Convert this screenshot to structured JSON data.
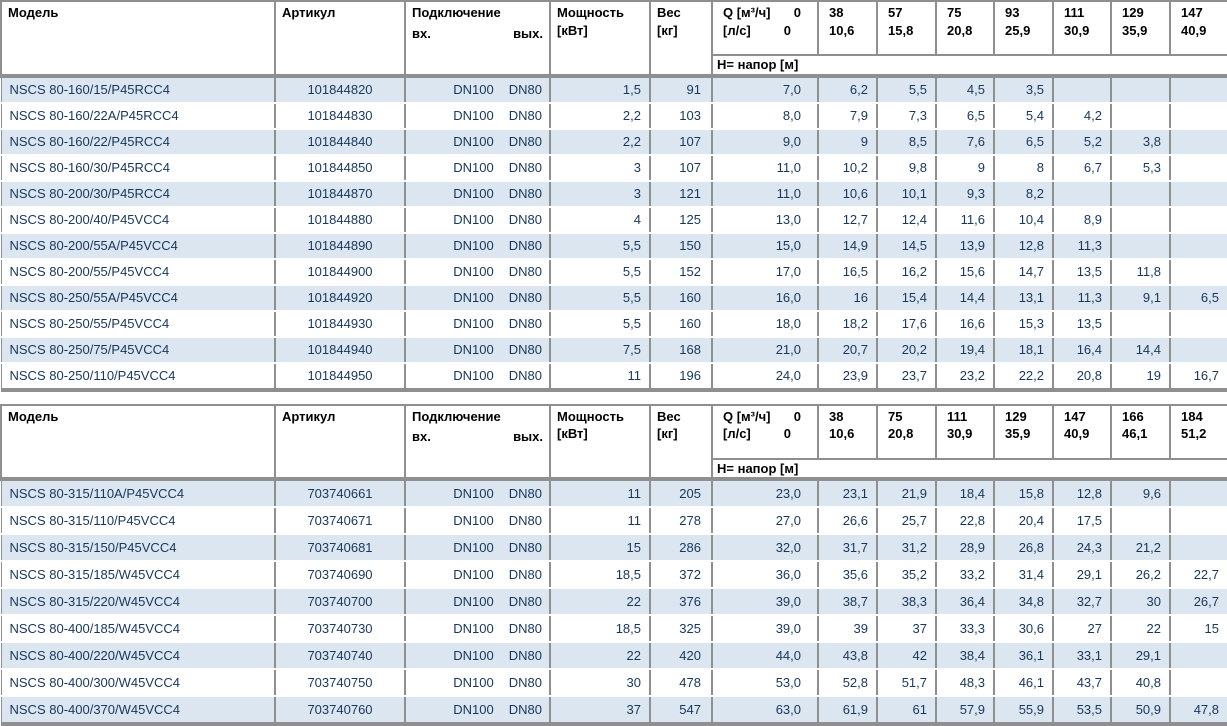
{
  "colors": {
    "row_alt": "#dce6f1",
    "border": "#8f8f8f",
    "body_text": "#17375d",
    "header_text": "#000000"
  },
  "tables": [
    {
      "headers": {
        "model": "Модель",
        "article": "Артикул",
        "connection": "Подключение",
        "conn_in": "вх.",
        "conn_out": "вых.",
        "power_line1": "Мощность",
        "power_line2": "[кВт]",
        "weight_line1": "Вес",
        "weight_line2": "[кг]",
        "q_row1_label": "Q [м³/ч]",
        "q_row1_value": "0",
        "q_row2_label": "[л/с]",
        "q_row2_value": "0",
        "head_label": "Н= напор [м]",
        "q_columns": [
          {
            "m3h": "38",
            "ls": "10,6"
          },
          {
            "m3h": "57",
            "ls": "15,8"
          },
          {
            "m3h": "75",
            "ls": "20,8"
          },
          {
            "m3h": "93",
            "ls": "25,9"
          },
          {
            "m3h": "111",
            "ls": "30,9"
          },
          {
            "m3h": "129",
            "ls": "35,9"
          },
          {
            "m3h": "147",
            "ls": "40,9"
          }
        ]
      },
      "rows": [
        {
          "model": "NSCS 80-160/15/P45RCC4",
          "article": "101844820",
          "dn_in": "DN100",
          "dn_out": "DN80",
          "power": "1,5",
          "weight": "91",
          "heads": [
            "7,0",
            "6,2",
            "5,5",
            "4,5",
            "3,5",
            "",
            "",
            ""
          ]
        },
        {
          "model": "NSCS 80-160/22A/P45RCC4",
          "article": "101844830",
          "dn_in": "DN100",
          "dn_out": "DN80",
          "power": "2,2",
          "weight": "103",
          "heads": [
            "8,0",
            "7,9",
            "7,3",
            "6,5",
            "5,4",
            "4,2",
            "",
            ""
          ]
        },
        {
          "model": "NSCS 80-160/22/P45RCC4",
          "article": "101844840",
          "dn_in": "DN100",
          "dn_out": "DN80",
          "power": "2,2",
          "weight": "107",
          "heads": [
            "9,0",
            "9",
            "8,5",
            "7,6",
            "6,5",
            "5,2",
            "3,8",
            ""
          ]
        },
        {
          "model": "NSCS 80-160/30/P45RCC4",
          "article": "101844850",
          "dn_in": "DN100",
          "dn_out": "DN80",
          "power": "3",
          "weight": "107",
          "heads": [
            "11,0",
            "10,2",
            "9,8",
            "9",
            "8",
            "6,7",
            "5,3",
            ""
          ]
        },
        {
          "model": "NSCS 80-200/30/P45RCC4",
          "article": "101844870",
          "dn_in": "DN100",
          "dn_out": "DN80",
          "power": "3",
          "weight": "121",
          "heads": [
            "11,0",
            "10,6",
            "10,1",
            "9,3",
            "8,2",
            "",
            "",
            ""
          ]
        },
        {
          "model": "NSCS 80-200/40/P45VCC4",
          "article": "101844880",
          "dn_in": "DN100",
          "dn_out": "DN80",
          "power": "4",
          "weight": "125",
          "heads": [
            "13,0",
            "12,7",
            "12,4",
            "11,6",
            "10,4",
            "8,9",
            "",
            ""
          ]
        },
        {
          "model": "NSCS 80-200/55A/P45VCC4",
          "article": "101844890",
          "dn_in": "DN100",
          "dn_out": "DN80",
          "power": "5,5",
          "weight": "150",
          "heads": [
            "15,0",
            "14,9",
            "14,5",
            "13,9",
            "12,8",
            "11,3",
            "",
            ""
          ]
        },
        {
          "model": "NSCS 80-200/55/P45VCC4",
          "article": "101844900",
          "dn_in": "DN100",
          "dn_out": "DN80",
          "power": "5,5",
          "weight": "152",
          "heads": [
            "17,0",
            "16,5",
            "16,2",
            "15,6",
            "14,7",
            "13,5",
            "11,8",
            ""
          ]
        },
        {
          "model": "NSCS 80-250/55A/P45VCC4",
          "article": "101844920",
          "dn_in": "DN100",
          "dn_out": "DN80",
          "power": "5,5",
          "weight": "160",
          "heads": [
            "16,0",
            "16",
            "15,4",
            "14,4",
            "13,1",
            "11,3",
            "9,1",
            "6,5"
          ]
        },
        {
          "model": "NSCS 80-250/55/P45VCC4",
          "article": "101844930",
          "dn_in": "DN100",
          "dn_out": "DN80",
          "power": "5,5",
          "weight": "160",
          "heads": [
            "18,0",
            "18,2",
            "17,6",
            "16,6",
            "15,3",
            "13,5",
            "",
            ""
          ]
        },
        {
          "model": "NSCS 80-250/75/P45VCC4",
          "article": "101844940",
          "dn_in": "DN100",
          "dn_out": "DN80",
          "power": "7,5",
          "weight": "168",
          "heads": [
            "21,0",
            "20,7",
            "20,2",
            "19,4",
            "18,1",
            "16,4",
            "14,4",
            ""
          ]
        },
        {
          "model": "NSCS 80-250/110/P45VCC4",
          "article": "101844950",
          "dn_in": "DN100",
          "dn_out": "DN80",
          "power": "11",
          "weight": "196",
          "heads": [
            "24,0",
            "23,9",
            "23,7",
            "23,2",
            "22,2",
            "20,8",
            "19",
            "16,7"
          ]
        }
      ]
    },
    {
      "headers": {
        "model": "Модель",
        "article": "Артикул",
        "connection": "Подключение",
        "conn_in": "вх.",
        "conn_out": "вых.",
        "power_line1": "Мощность",
        "power_line2": "[кВт]",
        "weight_line1": "Вес",
        "weight_line2": "[кг]",
        "q_row1_label": "Q [м³/ч]",
        "q_row1_value": "0",
        "q_row2_label": "[л/с]",
        "q_row2_value": "0",
        "head_label": "Н= напор [м]",
        "q_columns": [
          {
            "m3h": "38",
            "ls": "10,6"
          },
          {
            "m3h": "75",
            "ls": "20,8"
          },
          {
            "m3h": "111",
            "ls": "30,9"
          },
          {
            "m3h": "129",
            "ls": "35,9"
          },
          {
            "m3h": "147",
            "ls": "40,9"
          },
          {
            "m3h": "166",
            "ls": "46,1"
          },
          {
            "m3h": "184",
            "ls": "51,2"
          }
        ]
      },
      "rows": [
        {
          "model": "NSCS 80-315/110A/P45VCC4",
          "article": "703740661",
          "dn_in": "DN100",
          "dn_out": "DN80",
          "power": "11",
          "weight": "205",
          "heads": [
            "23,0",
            "23,1",
            "21,9",
            "18,4",
            "15,8",
            "12,8",
            "9,6",
            ""
          ]
        },
        {
          "model": "NSCS 80-315/110/P45VCC4",
          "article": "703740671",
          "dn_in": "DN100",
          "dn_out": "DN80",
          "power": "11",
          "weight": "278",
          "heads": [
            "27,0",
            "26,6",
            "25,7",
            "22,8",
            "20,4",
            "17,5",
            "",
            ""
          ]
        },
        {
          "model": "NSCS 80-315/150/P45VCC4",
          "article": "703740681",
          "dn_in": "DN100",
          "dn_out": "DN80",
          "power": "15",
          "weight": "286",
          "heads": [
            "32,0",
            "31,7",
            "31,2",
            "28,9",
            "26,8",
            "24,3",
            "21,2",
            ""
          ]
        },
        {
          "model": "NSCS 80-315/185/W45VCC4",
          "article": "703740690",
          "dn_in": "DN100",
          "dn_out": "DN80",
          "power": "18,5",
          "weight": "372",
          "heads": [
            "36,0",
            "35,6",
            "35,2",
            "33,2",
            "31,4",
            "29,1",
            "26,2",
            "22,7"
          ]
        },
        {
          "model": "NSCS 80-315/220/W45VCC4",
          "article": "703740700",
          "dn_in": "DN100",
          "dn_out": "DN80",
          "power": "22",
          "weight": "376",
          "heads": [
            "39,0",
            "38,7",
            "38,3",
            "36,4",
            "34,8",
            "32,7",
            "30",
            "26,7"
          ]
        },
        {
          "model": "NSCS 80-400/185/W45VCC4",
          "article": "703740730",
          "dn_in": "DN100",
          "dn_out": "DN80",
          "power": "18,5",
          "weight": "325",
          "heads": [
            "39,0",
            "39",
            "37",
            "33,3",
            "30,6",
            "27",
            "22",
            "15"
          ]
        },
        {
          "model": "NSCS 80-400/220/W45VCC4",
          "article": "703740740",
          "dn_in": "DN100",
          "dn_out": "DN80",
          "power": "22",
          "weight": "420",
          "heads": [
            "44,0",
            "43,8",
            "42",
            "38,4",
            "36,1",
            "33,1",
            "29,1",
            ""
          ]
        },
        {
          "model": "NSCS 80-400/300/W45VCC4",
          "article": "703740750",
          "dn_in": "DN100",
          "dn_out": "DN80",
          "power": "30",
          "weight": "478",
          "heads": [
            "53,0",
            "52,8",
            "51,7",
            "48,3",
            "46,1",
            "43,7",
            "40,8",
            ""
          ]
        },
        {
          "model": "NSCS 80-400/370/W45VCC4",
          "article": "703740760",
          "dn_in": "DN100",
          "dn_out": "DN80",
          "power": "37",
          "weight": "547",
          "heads": [
            "63,0",
            "61,9",
            "61",
            "57,9",
            "55,9",
            "53,5",
            "50,9",
            "47,8"
          ]
        }
      ]
    }
  ]
}
